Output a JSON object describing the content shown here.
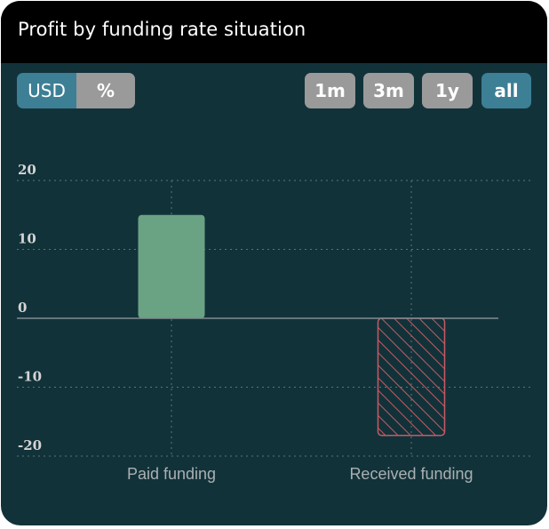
{
  "header": {
    "title": "Profit by funding rate situation"
  },
  "toggles": {
    "unit": [
      {
        "label": "USD",
        "active": true
      },
      {
        "label": "%",
        "active": false
      }
    ],
    "range": [
      {
        "label": "1m",
        "active": false
      },
      {
        "label": "3m",
        "active": false
      },
      {
        "label": "1y",
        "active": false
      },
      {
        "label": "all",
        "active": true
      }
    ]
  },
  "colors": {
    "background": "#12323a",
    "positive_bar": "#6aa383",
    "negative_bar": "#c75a62",
    "active_button": "#3d7f95",
    "inactive_button": "#9a9a9a"
  },
  "chart_data": {
    "type": "bar",
    "categories": [
      "Paid funding",
      "Received funding"
    ],
    "values": [
      15,
      -17
    ],
    "yticks": [
      20,
      10,
      0,
      -10,
      -20
    ],
    "ylim": [
      -20,
      20
    ],
    "xlabel": "",
    "ylabel": "",
    "grid": true
  }
}
